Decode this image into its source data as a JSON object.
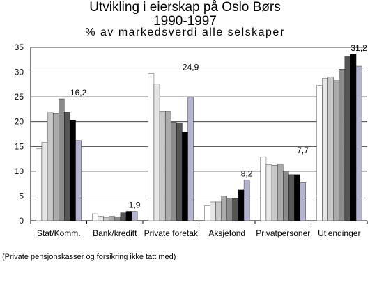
{
  "chart_data": {
    "type": "bar",
    "title": "Utvikling i eierskap på Oslo Børs",
    "subtitle": "1990-1997",
    "subtitle2": "% av markedsverdi alle selskaper",
    "categories": [
      "Stat/Komm.",
      "Bank/kreditt",
      "Private foretak",
      "Aksjefond",
      "Privatpersoner",
      "Utlendinger"
    ],
    "series": [
      {
        "values": [
          14.5,
          1.4,
          29.7,
          3.0,
          12.9,
          27.3
        ],
        "color": "#ffffff"
      },
      {
        "values": [
          15.8,
          0.9,
          27.6,
          3.8,
          11.3,
          28.7
        ],
        "color": "#e6e6e6"
      },
      {
        "values": [
          21.8,
          0.7,
          22.0,
          3.8,
          11.2,
          29.0
        ],
        "color": "#c8c8c8"
      },
      {
        "values": [
          21.6,
          0.9,
          22.0,
          5.0,
          11.4,
          28.3
        ],
        "color": "#aaaaaa"
      },
      {
        "values": [
          24.6,
          0.8,
          19.9,
          4.6,
          10.0,
          30.6
        ],
        "color": "#8c8c8c"
      },
      {
        "values": [
          21.9,
          1.6,
          19.8,
          4.5,
          9.3,
          33.2
        ],
        "color": "#555555"
      },
      {
        "values": [
          20.3,
          1.9,
          17.9,
          6.2,
          9.3,
          33.6
        ],
        "color": "#000000"
      },
      {
        "values": [
          16.2,
          1.9,
          24.9,
          8.2,
          7.7,
          31.2
        ],
        "color": "#b4b4d0"
      }
    ],
    "data_labels": [
      "16,2",
      "1,9",
      "24,9",
      "8,2",
      "7,7",
      "31,2"
    ],
    "ylim": [
      0,
      35
    ],
    "yticks": [
      "0",
      "5",
      "10",
      "15",
      "20",
      "25",
      "30",
      "35"
    ],
    "grid": true,
    "footnote": "(Private pensjonskasser og forsikring ikke tatt med)"
  }
}
